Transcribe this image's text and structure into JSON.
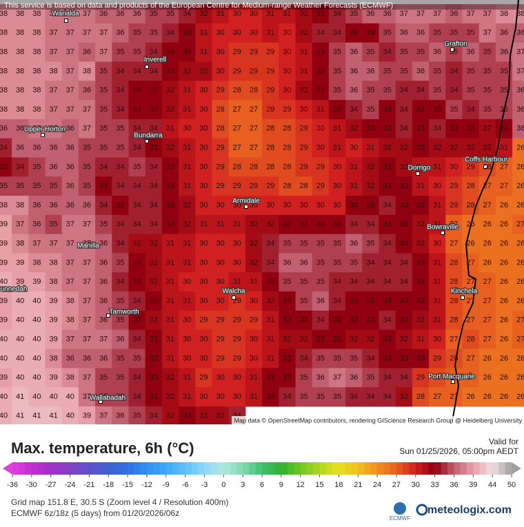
{
  "header": {
    "notice": "This service is based on data and products of the European Centre for Medium-range Weather Forecasts (ECMWF)",
    "credit": "Map data © OpenStreetMap contributors, rendering GIScience Research Group @ Heidelberg University"
  },
  "map": {
    "grid": [
      [
        38,
        38,
        38,
        37,
        37,
        37,
        36,
        36,
        36,
        35,
        35,
        34,
        32,
        31,
        30,
        30,
        31,
        31,
        32,
        33,
        34,
        35,
        36,
        36,
        37,
        37,
        37,
        36,
        37,
        37,
        38,
        38
      ],
      [
        38,
        38,
        38,
        37,
        37,
        37,
        37,
        36,
        35,
        35,
        34,
        33,
        31,
        30,
        30,
        30,
        31,
        30,
        32,
        34,
        34,
        33,
        33,
        35,
        36,
        36,
        35,
        35,
        35,
        37,
        36,
        36
      ],
      [
        38,
        38,
        38,
        37,
        37,
        36,
        37,
        35,
        35,
        34,
        33,
        33,
        31,
        30,
        29,
        29,
        29,
        30,
        31,
        33,
        35,
        36,
        35,
        34,
        35,
        35,
        36,
        35,
        36,
        35,
        36,
        37
      ],
      [
        38,
        38,
        38,
        38,
        37,
        38,
        35,
        34,
        34,
        34,
        33,
        32,
        32,
        30,
        29,
        29,
        29,
        30,
        31,
        33,
        35,
        36,
        36,
        35,
        35,
        36,
        35,
        34,
        35,
        35,
        35,
        37
      ],
      [
        38,
        38,
        38,
        37,
        37,
        36,
        35,
        34,
        33,
        33,
        32,
        31,
        30,
        29,
        28,
        28,
        29,
        30,
        32,
        33,
        35,
        36,
        35,
        35,
        34,
        34,
        35,
        34,
        35,
        35,
        35,
        36
      ],
      [
        38,
        38,
        38,
        37,
        37,
        37,
        35,
        34,
        33,
        33,
        32,
        31,
        30,
        28,
        27,
        27,
        29,
        29,
        30,
        31,
        33,
        34,
        35,
        33,
        34,
        33,
        33,
        35,
        34,
        35,
        35,
        36
      ],
      [
        36,
        36,
        37,
        37,
        36,
        37,
        35,
        35,
        34,
        34,
        31,
        30,
        30,
        28,
        27,
        27,
        28,
        28,
        29,
        30,
        31,
        32,
        33,
        33,
        34,
        33,
        34,
        33,
        33,
        32,
        33,
        36
      ],
      [
        34,
        36,
        36,
        36,
        36,
        35,
        35,
        35,
        34,
        33,
        32,
        31,
        30,
        29,
        27,
        27,
        28,
        28,
        29,
        30,
        31,
        30,
        31,
        32,
        32,
        33,
        32,
        32,
        32,
        32,
        31,
        26
      ],
      [
        33,
        34,
        35,
        36,
        36,
        35,
        34,
        34,
        35,
        34,
        33,
        31,
        30,
        29,
        28,
        28,
        28,
        28,
        29,
        29,
        30,
        31,
        32,
        33,
        32,
        31,
        31,
        30,
        29,
        28,
        27,
        26
      ],
      [
        35,
        35,
        35,
        35,
        36,
        35,
        33,
        34,
        34,
        34,
        33,
        31,
        30,
        29,
        29,
        29,
        29,
        28,
        28,
        29,
        30,
        31,
        32,
        33,
        33,
        31,
        30,
        29,
        28,
        27,
        27,
        26
      ],
      [
        38,
        38,
        36,
        36,
        36,
        36,
        34,
        33,
        34,
        34,
        33,
        32,
        30,
        30,
        30,
        30,
        30,
        30,
        30,
        30,
        30,
        33,
        33,
        34,
        33,
        33,
        31,
        29,
        28,
        27,
        26,
        26
      ],
      [
        39,
        37,
        36,
        35,
        37,
        37,
        35,
        34,
        34,
        34,
        33,
        32,
        31,
        31,
        31,
        32,
        32,
        33,
        33,
        33,
        33,
        34,
        34,
        33,
        33,
        32,
        31,
        27,
        26,
        26,
        26,
        27
      ],
      [
        39,
        38,
        37,
        37,
        37,
        37,
        36,
        34,
        32,
        32,
        31,
        31,
        30,
        30,
        30,
        32,
        34,
        35,
        35,
        35,
        35,
        36,
        35,
        34,
        33,
        32,
        30,
        27,
        26,
        26,
        26,
        26
      ],
      [
        39,
        39,
        38,
        38,
        37,
        37,
        36,
        35,
        33,
        32,
        31,
        31,
        30,
        30,
        30,
        32,
        34,
        36,
        36,
        35,
        35,
        35,
        34,
        34,
        34,
        33,
        31,
        28,
        27,
        26,
        26,
        26
      ],
      [
        40,
        39,
        39,
        38,
        37,
        37,
        36,
        34,
        33,
        32,
        31,
        30,
        30,
        30,
        31,
        31,
        33,
        35,
        35,
        35,
        34,
        34,
        34,
        34,
        34,
        33,
        31,
        28,
        27,
        27,
        26,
        26
      ],
      [
        39,
        40,
        40,
        39,
        38,
        37,
        36,
        35,
        34,
        33,
        31,
        31,
        30,
        30,
        29,
        30,
        32,
        33,
        35,
        36,
        34,
        33,
        33,
        33,
        33,
        33,
        31,
        28,
        27,
        27,
        26,
        26
      ],
      [
        39,
        40,
        40,
        39,
        38,
        37,
        36,
        35,
        33,
        32,
        31,
        30,
        29,
        29,
        29,
        29,
        31,
        33,
        33,
        34,
        33,
        33,
        33,
        34,
        33,
        32,
        31,
        28,
        27,
        27,
        26,
        27
      ],
      [
        40,
        40,
        40,
        39,
        37,
        37,
        37,
        36,
        34,
        33,
        31,
        30,
        30,
        29,
        29,
        30,
        31,
        32,
        32,
        33,
        33,
        32,
        32,
        33,
        32,
        31,
        30,
        27,
        28,
        27,
        26,
        27
      ],
      [
        40,
        40,
        40,
        38,
        36,
        36,
        36,
        35,
        35,
        33,
        31,
        30,
        30,
        29,
        29,
        30,
        31,
        33,
        34,
        35,
        35,
        35,
        34,
        33,
        33,
        33,
        29,
        28,
        27,
        26,
        26,
        26
      ],
      [
        39,
        40,
        40,
        39,
        38,
        37,
        35,
        35,
        34,
        33,
        32,
        31,
        29,
        30,
        30,
        31,
        33,
        33,
        35,
        36,
        37,
        36,
        35,
        34,
        34,
        29,
        28,
        27,
        27,
        26,
        26,
        26
      ],
      [
        40,
        41,
        40,
        40,
        40,
        37,
        35,
        35,
        34,
        33,
        32,
        31,
        30,
        30,
        30,
        31,
        33,
        34,
        35,
        35,
        35,
        34,
        34,
        34,
        32,
        28,
        27,
        27,
        26,
        26,
        26,
        26
      ],
      [
        40,
        41,
        41,
        41,
        40,
        39,
        37,
        36,
        35,
        34,
        32,
        33,
        32,
        32,
        34
      ]
    ],
    "places": [
      "Warialda",
      "Inverell",
      "Grafton",
      "Upper Horton",
      "Bundarra",
      "Dorrigo",
      "Coffs Harbour",
      "Armidale",
      "Bowraville",
      "Manilla",
      "Walcha",
      "Kinchela",
      "unnedah",
      "Tamworth",
      "Port Macquarie",
      "Wallabadah"
    ]
  },
  "legend": {
    "title": "Max. temperature, 6h (°C)",
    "valid_label": "Valid for",
    "valid_time": "Sun 01/25/2026, 05:00pm AEDT",
    "ticks": [
      -36,
      -30,
      -27,
      -24,
      -21,
      -18,
      -15,
      -12,
      -9,
      -6,
      -3,
      0,
      3,
      6,
      9,
      12,
      15,
      18,
      21,
      24,
      27,
      30,
      33,
      36,
      39,
      44,
      50
    ],
    "colors": [
      "#e040e0",
      "#c030d0",
      "#a030c8",
      "#8040c0",
      "#6050c8",
      "#4060d0",
      "#3070e0",
      "#3090f0",
      "#40a8f8",
      "#60c0f8",
      "#90d8f8",
      "#b0e8e0",
      "#80d8b0",
      "#40c070",
      "#30b030",
      "#70c820",
      "#b0d820",
      "#e8e020",
      "#f0c020",
      "#f09020",
      "#e86020",
      "#d02020",
      "#900010",
      "#c06070",
      "#e8a0a8",
      "#f0e0e0",
      "#a0a0a0"
    ]
  },
  "footer": {
    "line1": "Grid map 151.8 E, 30.5 S (Zoom level 4 / Resolution 400m)",
    "line2": "ECMWF 6z/18z (5 days) from 01/20/2026/06z",
    "model_logo": "ECMWF",
    "brand": "meteologix.com"
  }
}
